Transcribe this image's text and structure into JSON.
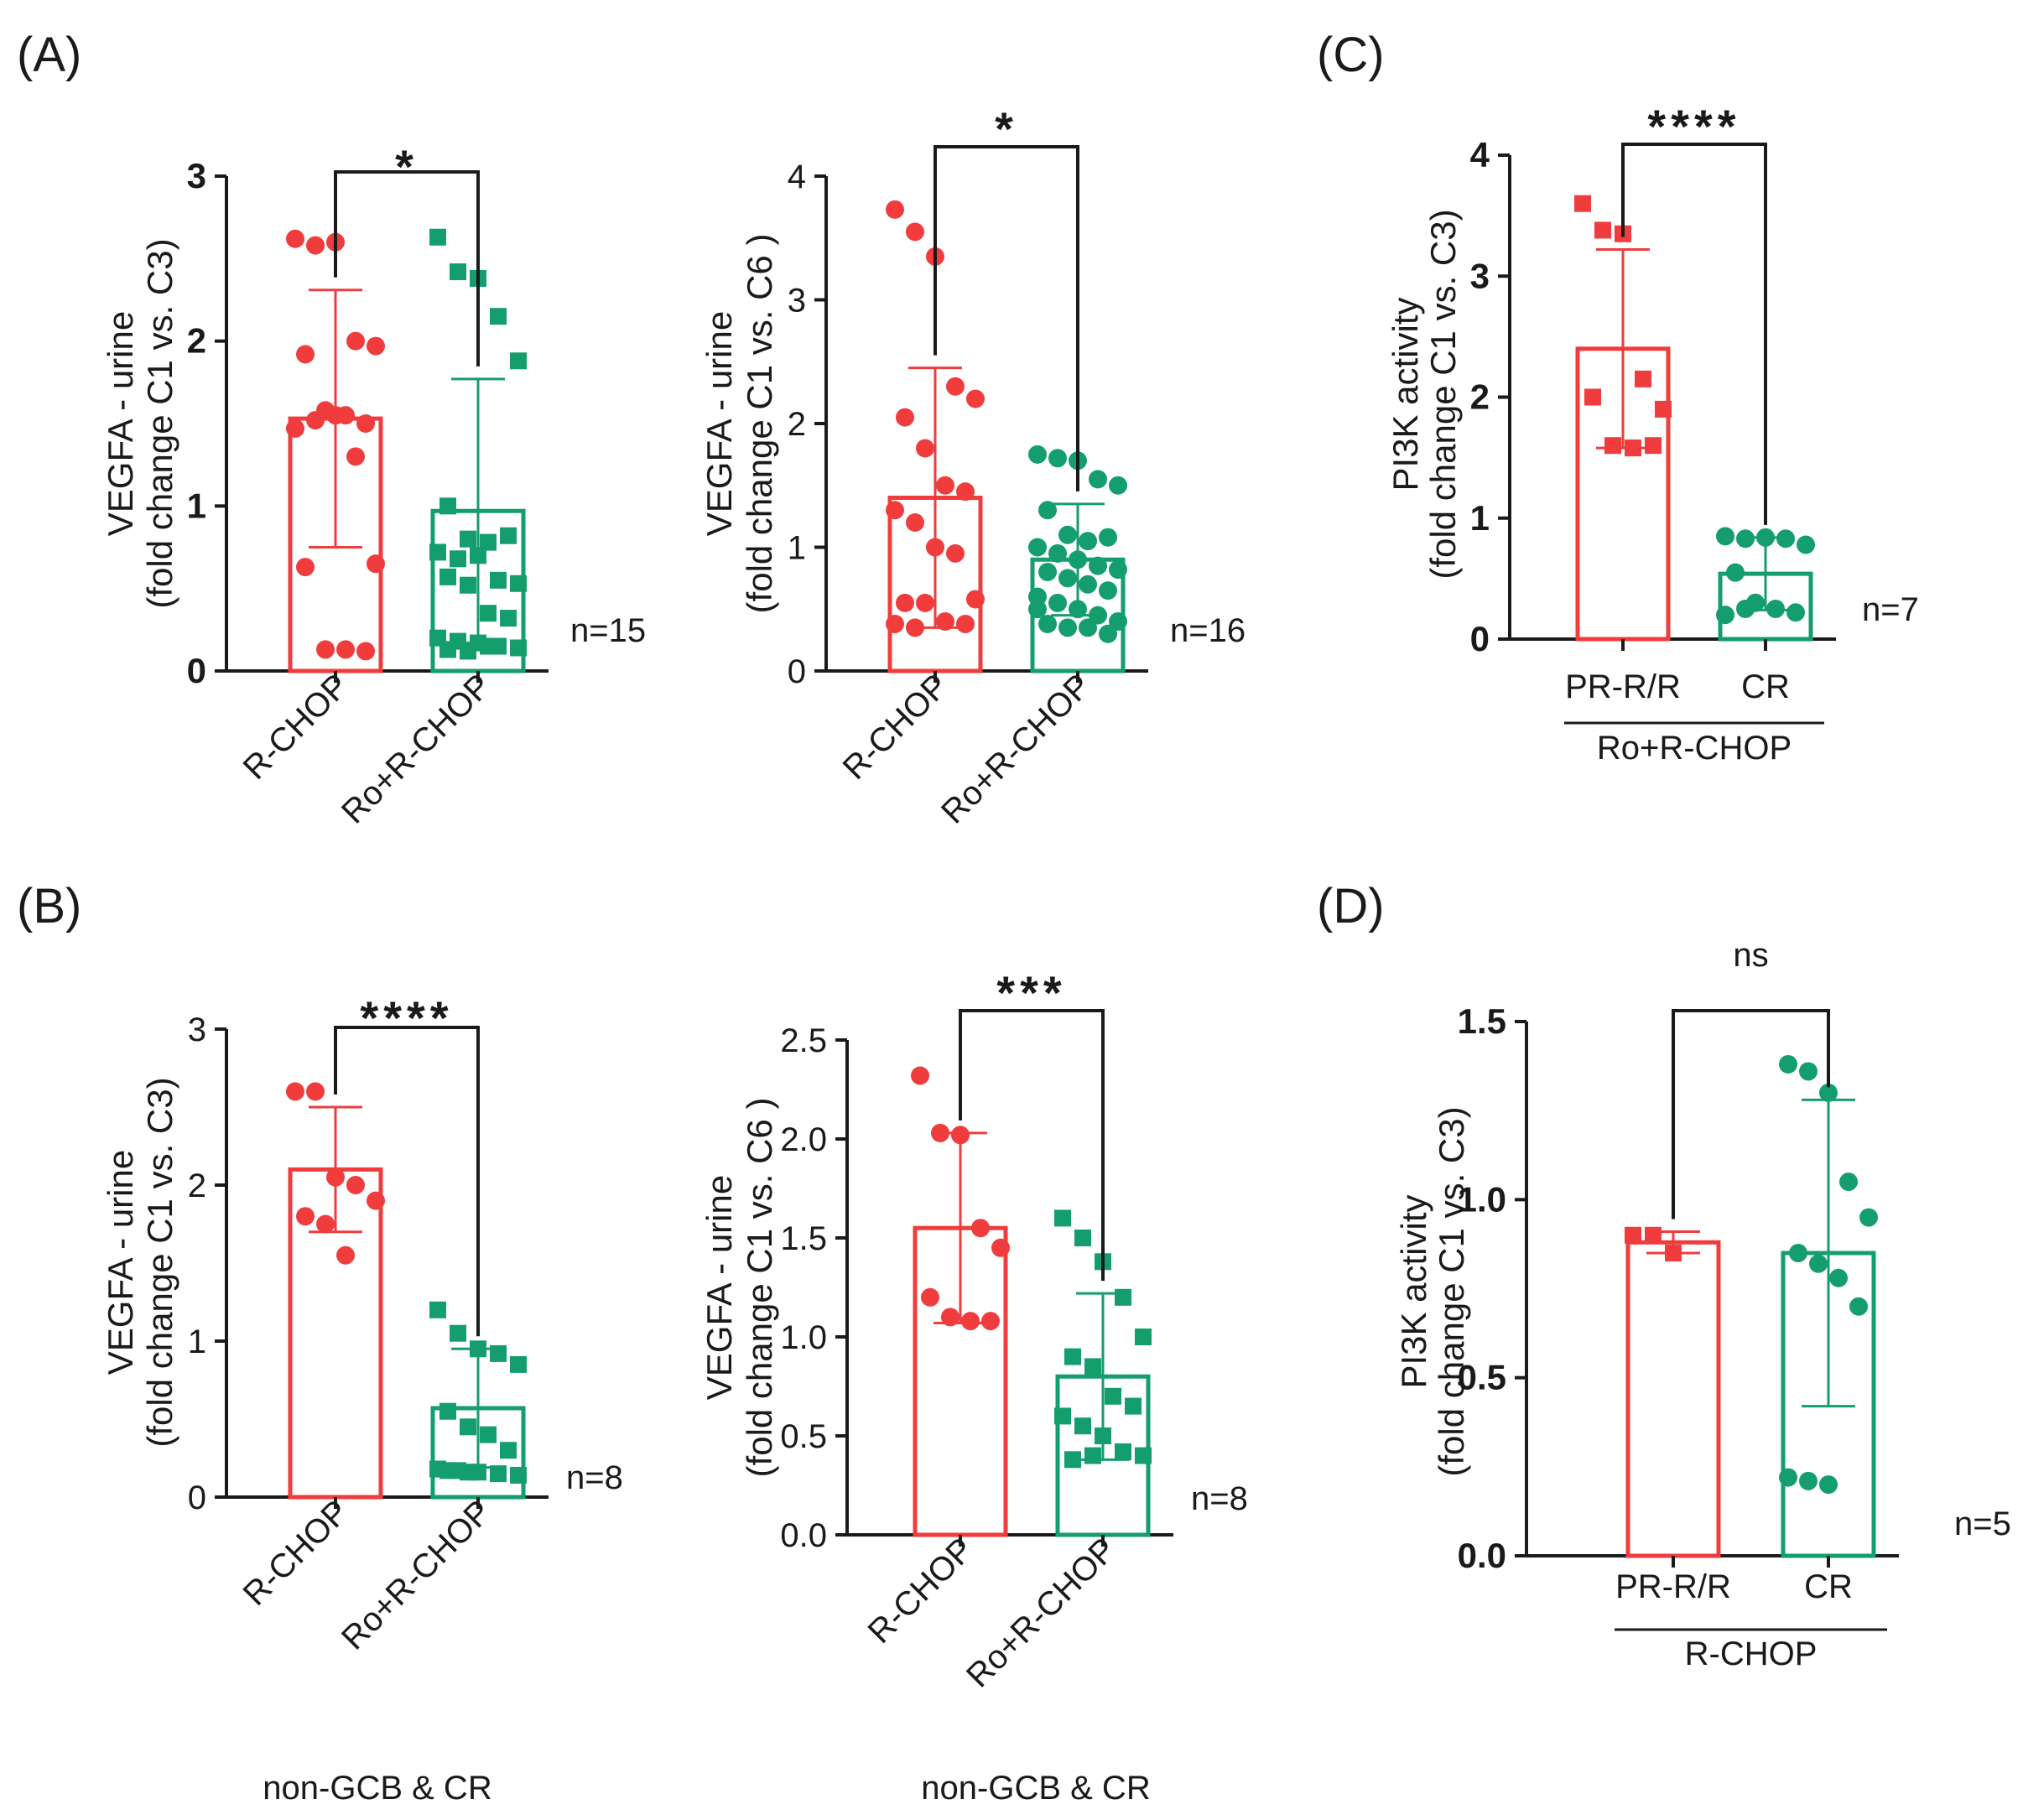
{
  "colors": {
    "red": "#f03c3c",
    "green": "#149e6e",
    "axis": "#1a1a1a"
  },
  "chart_data": [
    {
      "id": "A1",
      "panel_label": "(A)",
      "type": "bar",
      "categories": [
        "R-CHOP",
        "Ro+R-CHOP"
      ],
      "ylabel": [
        "VEGFA - urine",
        "(fold change C1 vs. C3)"
      ],
      "ylim": [
        0,
        3
      ],
      "yticks": [
        "0",
        "1",
        "2",
        "3"
      ],
      "n_label": "n=15",
      "significance": "*",
      "footnote": "",
      "group_label": "",
      "series": [
        {
          "name": "R-CHOP",
          "color": "red",
          "marker": "circle",
          "mean": 1.53,
          "sd": 0.78,
          "points": [
            2.62,
            2.58,
            2.6,
            2.0,
            1.97,
            1.92,
            1.58,
            1.55,
            1.5,
            1.47,
            1.52,
            1.55,
            1.3,
            0.65,
            0.63,
            0.13,
            0.13,
            0.12
          ]
        },
        {
          "name": "Ro+R-CHOP",
          "color": "green",
          "marker": "square",
          "mean": 0.97,
          "sd": 0.8,
          "points": [
            2.63,
            2.42,
            2.38,
            2.15,
            1.88,
            1.0,
            0.8,
            0.78,
            0.82,
            0.72,
            0.68,
            0.7,
            0.55,
            0.53,
            0.57,
            0.52,
            0.35,
            0.32,
            0.2,
            0.18,
            0.17,
            0.15,
            0.14,
            0.13,
            0.12,
            0.15
          ]
        }
      ]
    },
    {
      "id": "A2",
      "panel_label": "",
      "type": "bar",
      "categories": [
        "R-CHOP",
        "Ro+R-CHOP"
      ],
      "ylabel": [
        "VEGFA - urine",
        "(fold change C1 vs. C6 )"
      ],
      "ylim": [
        0,
        4
      ],
      "yticks": [
        "0",
        "1",
        "2",
        "3",
        "4"
      ],
      "n_label": "n=16",
      "significance": "*",
      "footnote": "",
      "group_label": "",
      "series": [
        {
          "name": "R-CHOP",
          "color": "red",
          "marker": "circle",
          "mean": 1.4,
          "sd": 1.05,
          "points": [
            3.73,
            3.55,
            3.35,
            2.3,
            2.2,
            2.05,
            1.8,
            1.5,
            1.45,
            1.3,
            1.2,
            1.0,
            0.95,
            0.58,
            0.55,
            0.55,
            0.4,
            0.38,
            0.38,
            0.35
          ]
        },
        {
          "name": "Ro+R-CHOP",
          "color": "green",
          "marker": "circle",
          "mean": 0.9,
          "sd": 0.45,
          "points": [
            1.75,
            1.72,
            1.7,
            1.55,
            1.5,
            1.3,
            1.1,
            1.05,
            1.08,
            1.0,
            0.95,
            0.9,
            0.85,
            0.82,
            0.8,
            0.75,
            0.7,
            0.65,
            0.6,
            0.55,
            0.5,
            0.45,
            0.4,
            0.38,
            0.35,
            0.35,
            0.3,
            0.5
          ]
        }
      ]
    },
    {
      "id": "C",
      "panel_label": "(C)",
      "type": "bar",
      "categories": [
        "PR-R/R",
        "CR"
      ],
      "ylabel": [
        "PI3K activity",
        "(fold change C1 vs. C3)"
      ],
      "ylim": [
        0,
        4
      ],
      "yticks": [
        "0",
        "1",
        "2",
        "3",
        "4"
      ],
      "n_label": "n=7",
      "significance": "****",
      "footnote": "",
      "group_label": "Ro+R-CHOP",
      "series": [
        {
          "name": "PR-R/R",
          "color": "red",
          "marker": "square",
          "mean": 2.4,
          "sd": 0.82,
          "points": [
            3.6,
            3.38,
            3.35,
            2.15,
            1.9,
            2.0,
            1.6,
            1.58,
            1.6
          ]
        },
        {
          "name": "CR",
          "color": "green",
          "marker": "circle",
          "mean": 0.54,
          "sd": 0.3,
          "points": [
            0.85,
            0.83,
            0.84,
            0.83,
            0.78,
            0.55,
            0.3,
            0.25,
            0.22,
            0.2,
            0.25
          ]
        }
      ]
    },
    {
      "id": "B1",
      "panel_label": "(B)",
      "type": "bar",
      "categories": [
        "R-CHOP",
        "Ro+R-CHOP"
      ],
      "ylabel": [
        "VEGFA - urine",
        "(fold change C1 vs. C3)"
      ],
      "ylim": [
        0,
        3
      ],
      "yticks": [
        "0",
        "1",
        "2",
        "3"
      ],
      "n_label": "n=8",
      "significance": "****",
      "footnote": "non-GCB & CR",
      "group_label": "",
      "series": [
        {
          "name": "R-CHOP",
          "color": "red",
          "marker": "circle",
          "mean": 2.1,
          "sd": 0.4,
          "points": [
            2.6,
            2.6,
            2.05,
            2.0,
            1.9,
            1.8,
            1.75,
            1.55
          ]
        },
        {
          "name": "Ro+R-CHOP",
          "color": "green",
          "marker": "square",
          "mean": 0.57,
          "sd": 0.38,
          "points": [
            1.2,
            1.05,
            0.95,
            0.92,
            0.85,
            0.55,
            0.45,
            0.4,
            0.3,
            0.18,
            0.17,
            0.16,
            0.15,
            0.14,
            0.17,
            0.16
          ]
        }
      ]
    },
    {
      "id": "B2",
      "panel_label": "",
      "type": "bar",
      "categories": [
        "R-CHOP",
        "Ro+R-CHOP"
      ],
      "ylabel": [
        "VEGFA - urine",
        "(fold change C1 vs. C6 )"
      ],
      "ylim": [
        0,
        2.5
      ],
      "yticks": [
        "0.0",
        "0.5",
        "1.0",
        "1.5",
        "2.0",
        "2.5"
      ],
      "n_label": "n=8",
      "significance": "***",
      "footnote": "non-GCB & CR",
      "group_label": "",
      "series": [
        {
          "name": "R-CHOP",
          "color": "red",
          "marker": "circle",
          "mean": 1.55,
          "sd": 0.48,
          "points": [
            2.32,
            2.03,
            2.02,
            1.55,
            1.45,
            1.2,
            1.1,
            1.08,
            1.08
          ]
        },
        {
          "name": "Ro+R-CHOP",
          "color": "green",
          "marker": "square",
          "mean": 0.8,
          "sd": 0.42,
          "points": [
            1.6,
            1.5,
            1.38,
            1.2,
            1.0,
            0.9,
            0.85,
            0.7,
            0.65,
            0.6,
            0.55,
            0.5,
            0.42,
            0.4,
            0.38,
            0.4
          ]
        }
      ]
    },
    {
      "id": "D",
      "panel_label": "(D)",
      "type": "bar",
      "categories": [
        "PR-R/R",
        "CR"
      ],
      "ylabel": [
        "PI3K activity",
        "(fold change C1 vs. C3)"
      ],
      "ylim": [
        0,
        1.5
      ],
      "yticks": [
        "0.0",
        "0.5",
        "1.0",
        "1.5"
      ],
      "n_label": "n=5",
      "significance": "ns",
      "footnote": "",
      "group_label": "R-CHOP",
      "series": [
        {
          "name": "PR-R/R",
          "color": "red",
          "marker": "square",
          "mean": 0.88,
          "sd": 0.03,
          "points": [
            0.9,
            0.9,
            0.85
          ]
        },
        {
          "name": "CR",
          "color": "green",
          "marker": "circle",
          "mean": 0.85,
          "sd": 0.43,
          "points": [
            1.38,
            1.36,
            1.3,
            1.05,
            0.95,
            0.85,
            0.82,
            0.78,
            0.7,
            0.22,
            0.21,
            0.2
          ]
        }
      ]
    }
  ]
}
